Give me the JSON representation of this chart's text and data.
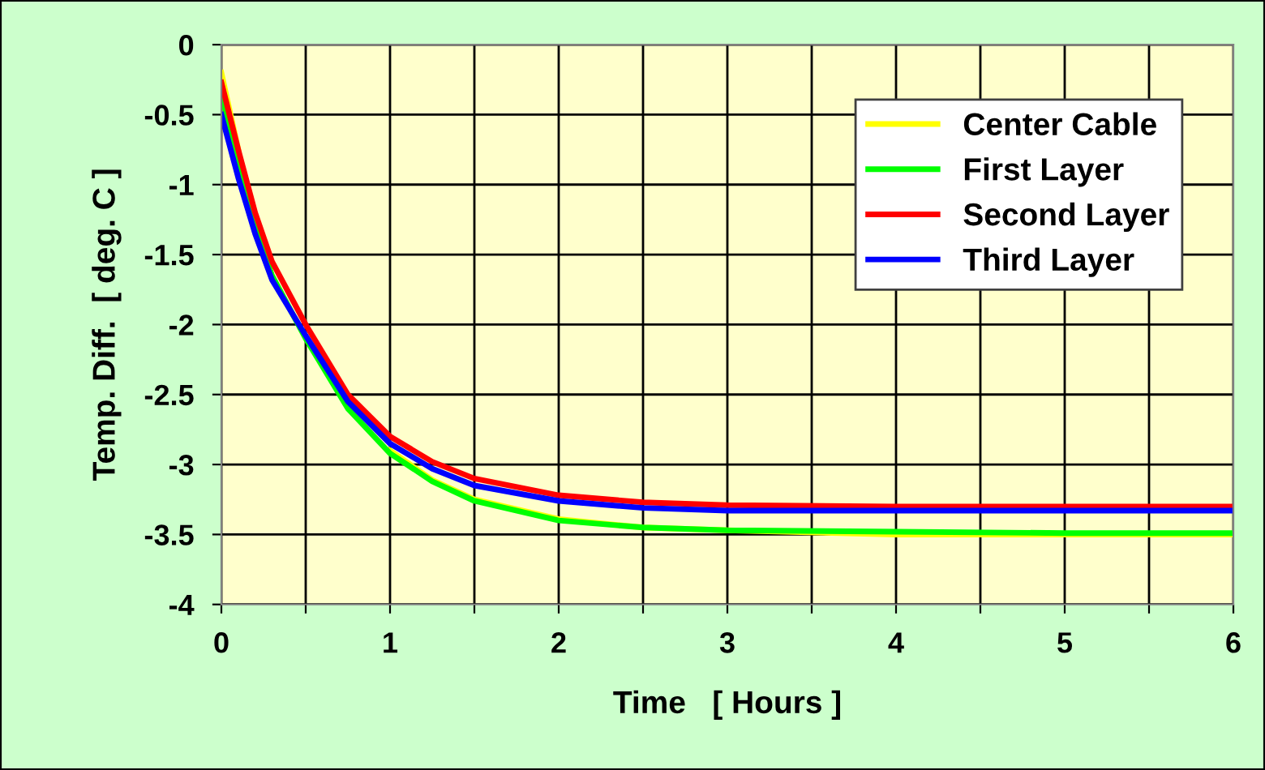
{
  "chart_data": {
    "type": "line",
    "xlabel": "Time   [ Hours ]",
    "ylabel": "Temp. Diff.  [ deg. C ]",
    "x": [
      0,
      0.1,
      0.2,
      0.3,
      0.5,
      0.75,
      1,
      1.25,
      1.5,
      2,
      2.5,
      3,
      4,
      5,
      6
    ],
    "series": [
      {
        "name": "Center Cable",
        "color": "#ffff00",
        "values": [
          -0.2,
          -0.75,
          null,
          null,
          null,
          null,
          -2.9,
          -3.11,
          -3.25,
          -3.39,
          -3.45,
          -3.47,
          -3.5,
          -3.5,
          -3.5
        ]
      },
      {
        "name": "First Layer",
        "color": "#00ff00",
        "values": [
          -0.35,
          -0.85,
          -1.3,
          -1.65,
          -2.1,
          -2.6,
          -2.92,
          -3.12,
          -3.26,
          -3.4,
          -3.45,
          -3.47,
          -3.48,
          -3.49,
          -3.49
        ]
      },
      {
        "name": "Second Layer",
        "color": "#ff0000",
        "values": [
          -0.27,
          -0.75,
          -1.2,
          -1.55,
          -2.0,
          -2.5,
          -2.8,
          -2.98,
          -3.1,
          -3.22,
          -3.27,
          -3.29,
          -3.3,
          -3.3,
          -3.3
        ]
      },
      {
        "name": "Third Layer",
        "color": "#0000ff",
        "values": [
          -0.5,
          -0.95,
          -1.35,
          -1.68,
          -2.08,
          -2.55,
          -2.85,
          -3.03,
          -3.15,
          -3.26,
          -3.31,
          -3.33,
          -3.33,
          -3.33,
          -3.33
        ]
      }
    ],
    "xlim": [
      0,
      6
    ],
    "xticks": [
      0,
      {
        "value": 0.5,
        "label": null
      },
      1,
      {
        "value": 1.5,
        "label": null
      },
      2,
      {
        "value": 2.5,
        "label": null
      },
      3,
      {
        "value": 3.5,
        "label": null
      },
      4,
      {
        "value": 4.5,
        "label": null
      },
      5,
      {
        "value": 5.5,
        "label": null
      },
      6
    ],
    "ylim": [
      -4,
      0
    ],
    "yticks": [
      -4,
      -3.5,
      -3,
      -2.5,
      -2,
      -1.5,
      -1,
      -0.5,
      0
    ],
    "grid": true,
    "legend": "top right",
    "marker": "none",
    "line_style": "solid"
  }
}
